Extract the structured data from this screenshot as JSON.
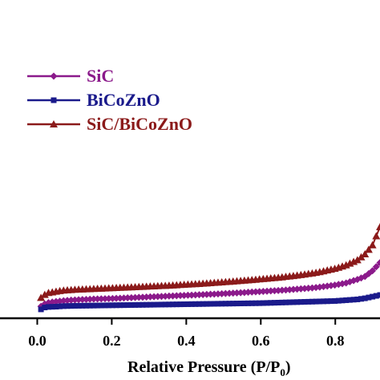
{
  "chart_data": {
    "type": "line",
    "xlabel": "Relative Pressure (P/P0)",
    "xlabel_main": "Relative Pressure (P/P",
    "xlabel_sub": "0",
    "xlabel_close": ")",
    "ylabel": "",
    "xlim": [
      -0.1,
      0.92
    ],
    "ylim": [
      0,
      100
    ],
    "x_ticks": [
      "0.0",
      "0.2",
      "0.4",
      "0.6",
      "0.8"
    ],
    "x_tick_values": [
      0.0,
      0.2,
      0.4,
      0.6,
      0.8
    ],
    "legend": {
      "position": "top-left"
    },
    "series": [
      {
        "name": "SiC",
        "color": "#8b1a8b",
        "marker": "diamond",
        "x": [
          0.01,
          0.02,
          0.03,
          0.05,
          0.07,
          0.1,
          0.15,
          0.2,
          0.25,
          0.3,
          0.35,
          0.4,
          0.45,
          0.5,
          0.55,
          0.6,
          0.65,
          0.7,
          0.75,
          0.8,
          0.83,
          0.86,
          0.88,
          0.9,
          0.92
        ],
        "y": [
          4.4,
          5.3,
          5.8,
          6.2,
          6.5,
          6.8,
          7.1,
          7.3,
          7.6,
          7.9,
          8.2,
          8.5,
          8.8,
          9.1,
          9.5,
          9.9,
          10.3,
          10.8,
          11.4,
          12.3,
          13.1,
          14.4,
          15.5,
          17.6,
          20.6
        ]
      },
      {
        "name": "BiCoZnO",
        "color": "#1a1a8b",
        "marker": "square",
        "x": [
          0.01,
          0.02,
          0.03,
          0.05,
          0.07,
          0.1,
          0.15,
          0.2,
          0.25,
          0.3,
          0.35,
          0.4,
          0.45,
          0.5,
          0.55,
          0.6,
          0.65,
          0.7,
          0.75,
          0.8,
          0.83,
          0.86,
          0.88,
          0.9,
          0.92
        ],
        "y": [
          3.3,
          4.0,
          4.2,
          4.3,
          4.5,
          4.6,
          4.7,
          4.8,
          4.9,
          5.0,
          5.1,
          5.2,
          5.3,
          5.4,
          5.5,
          5.6,
          5.8,
          6.0,
          6.2,
          6.4,
          6.7,
          7.0,
          7.4,
          8.0,
          8.6
        ]
      },
      {
        "name": "SiC/BiCoZnO",
        "color": "#8b1a1a",
        "marker": "triangle",
        "x": [
          0.01,
          0.02,
          0.03,
          0.05,
          0.07,
          0.1,
          0.15,
          0.2,
          0.25,
          0.3,
          0.35,
          0.4,
          0.45,
          0.5,
          0.55,
          0.6,
          0.65,
          0.7,
          0.75,
          0.8,
          0.83,
          0.86,
          0.88,
          0.9,
          0.92
        ],
        "y": [
          7.6,
          8.7,
          9.4,
          9.9,
          10.3,
          10.6,
          10.9,
          11.2,
          11.5,
          11.8,
          12.1,
          12.5,
          12.9,
          13.4,
          13.9,
          14.5,
          15.1,
          15.9,
          16.9,
          18.4,
          19.7,
          21.6,
          23.8,
          27.1,
          33.8
        ]
      }
    ]
  }
}
